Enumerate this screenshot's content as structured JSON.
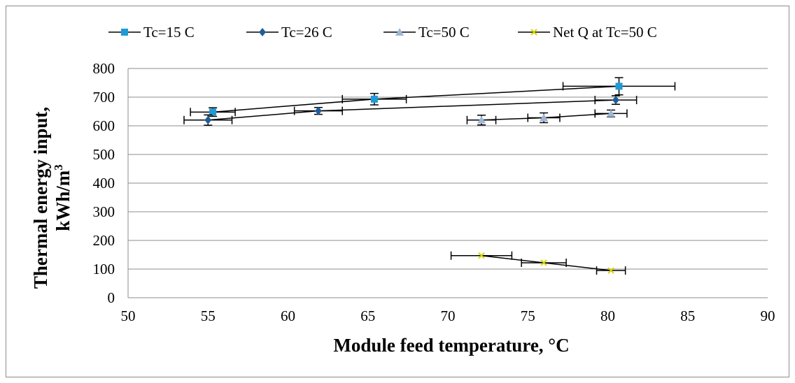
{
  "chart_data": {
    "type": "scatter",
    "xlabel": "Module feed temperature,  °C",
    "ylabel_line1": "Thermal energy input,",
    "ylabel_line2": "kWh/m",
    "ylabel_sup": "3",
    "xlim": [
      50,
      90
    ],
    "ylim": [
      0,
      800
    ],
    "xticks": [
      50,
      55,
      60,
      65,
      70,
      75,
      80,
      85,
      90
    ],
    "yticks": [
      0,
      100,
      200,
      300,
      400,
      500,
      600,
      700,
      800
    ],
    "grid": "horizontal",
    "legend_position": "top",
    "series": [
      {
        "name": "Tc=15 C",
        "marker": "square",
        "color": "#1e9bd7",
        "x": [
          55.3,
          65.4,
          80.7
        ],
        "y": [
          648,
          693,
          738
        ],
        "xerr": [
          1.4,
          2.0,
          3.5
        ],
        "yerr": [
          15,
          20,
          30
        ]
      },
      {
        "name": "Tc=26 C",
        "marker": "diamond",
        "color": "#1f5c99",
        "x": [
          55.0,
          61.9,
          80.5
        ],
        "y": [
          620,
          652,
          690
        ],
        "xerr": [
          1.5,
          1.5,
          1.3
        ],
        "yerr": [
          18,
          12,
          15
        ]
      },
      {
        "name": "Tc=50 C",
        "marker": "triangle",
        "color": "#9db7d5",
        "x": [
          72.1,
          76.0,
          80.2
        ],
        "y": [
          620,
          628,
          643
        ],
        "xerr": [
          0.9,
          1.0,
          1.0
        ],
        "yerr": [
          17,
          17,
          12
        ]
      },
      {
        "name": "Net Q at Tc=50 C",
        "marker": "x",
        "color": "#d4d400",
        "x": [
          72.1,
          76.0,
          80.2
        ],
        "y": [
          147,
          122,
          95
        ],
        "xerr": [
          1.9,
          1.4,
          0.9
        ],
        "yerr": [
          0,
          0,
          0
        ]
      }
    ]
  }
}
